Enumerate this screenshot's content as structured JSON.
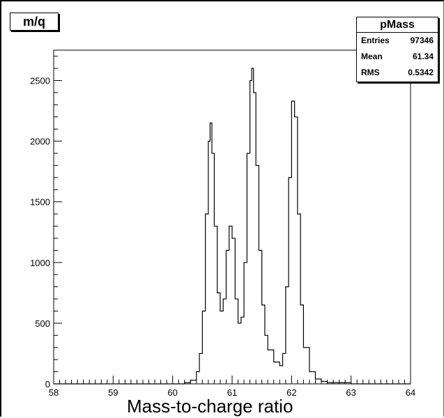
{
  "title_box": {
    "label": "m/q"
  },
  "stats": {
    "name": "pMass",
    "rows": [
      {
        "label": "Entries",
        "value": "97346"
      },
      {
        "label": "Mean",
        "value": "61.34"
      },
      {
        "label": "RMS",
        "value": "0.5342"
      }
    ]
  },
  "chart_data": {
    "type": "line",
    "title": "",
    "xlabel": "Mass-to-charge ratio",
    "ylabel": "",
    "xlim": [
      58,
      64
    ],
    "ylim": [
      0,
      2750
    ],
    "xticks": [
      58,
      59,
      60,
      61,
      62,
      63,
      64
    ],
    "yticks": [
      0,
      500,
      1000,
      1500,
      2000,
      2500
    ],
    "grid": false,
    "series": [
      {
        "style": "histogram-step",
        "x": [
          60.0,
          60.2,
          60.3,
          60.4,
          60.45,
          60.5,
          60.55,
          60.6,
          60.63,
          60.66,
          60.7,
          60.75,
          60.8,
          60.85,
          60.9,
          60.95,
          61.0,
          61.05,
          61.1,
          61.15,
          61.2,
          61.25,
          61.3,
          61.33,
          61.36,
          61.4,
          61.45,
          61.5,
          61.55,
          61.6,
          61.7,
          61.8,
          61.85,
          61.9,
          61.95,
          62.0,
          62.05,
          62.1,
          62.15,
          62.2,
          62.3,
          62.4,
          62.5,
          62.6,
          63.0
        ],
        "y": [
          0,
          10,
          30,
          100,
          250,
          600,
          1400,
          2000,
          2150,
          1900,
          1300,
          750,
          600,
          700,
          1100,
          1300,
          1200,
          700,
          500,
          550,
          1000,
          1900,
          2500,
          2600,
          2400,
          1800,
          1100,
          650,
          400,
          280,
          180,
          150,
          250,
          800,
          1700,
          2330,
          2200,
          1400,
          650,
          300,
          100,
          40,
          20,
          10,
          0
        ]
      }
    ]
  }
}
